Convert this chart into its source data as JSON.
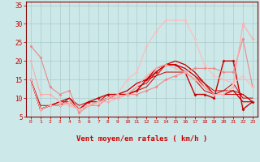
{
  "bg_color": "#cce8e8",
  "grid_color": "#aacccc",
  "xlabel": "Vent moyen/en rafales ( km/h )",
  "xlabel_color": "#cc0000",
  "tick_color": "#cc0000",
  "axis_color": "#880000",
  "xlim": [
    -0.5,
    23.5
  ],
  "ylim": [
    5,
    36
  ],
  "yticks": [
    5,
    10,
    15,
    20,
    25,
    30,
    35
  ],
  "xticks": [
    0,
    1,
    2,
    3,
    4,
    5,
    6,
    7,
    8,
    9,
    10,
    11,
    12,
    13,
    14,
    15,
    16,
    17,
    18,
    19,
    20,
    21,
    22,
    23
  ],
  "lines": [
    {
      "x": [
        0,
        1,
        2,
        3,
        4,
        5,
        6,
        7,
        8,
        9,
        10,
        11,
        12,
        13,
        14,
        15,
        16,
        17,
        18,
        19,
        20,
        21,
        22,
        23
      ],
      "y": [
        15,
        7,
        8,
        8,
        9,
        7,
        9,
        10,
        11,
        11,
        11,
        12,
        15,
        17,
        19,
        19,
        17,
        11,
        11,
        10,
        20,
        20,
        7,
        9
      ],
      "color": "#cc0000",
      "lw": 1.0,
      "marker": "D",
      "ms": 2.0
    },
    {
      "x": [
        0,
        1,
        2,
        3,
        4,
        5,
        6,
        7,
        8,
        9,
        10,
        11,
        12,
        13,
        14,
        15,
        16,
        17,
        18,
        19,
        20,
        21,
        22,
        23
      ],
      "y": [
        24,
        21,
        13,
        11,
        12,
        6,
        8,
        8,
        10,
        10,
        11,
        11,
        12,
        13,
        15,
        16,
        17,
        18,
        18,
        18,
        17,
        17,
        26,
        13
      ],
      "color": "#ee8888",
      "lw": 0.8,
      "marker": "D",
      "ms": 2.0
    },
    {
      "x": [
        0,
        1,
        2,
        3,
        4,
        5,
        6,
        7,
        8,
        9,
        10,
        11,
        12,
        13,
        14,
        15,
        16,
        17,
        18,
        19,
        20,
        21,
        22,
        23
      ],
      "y": [
        20,
        11,
        11,
        9,
        8,
        7,
        8,
        9,
        9,
        10,
        11,
        13,
        16,
        18,
        19,
        18,
        17,
        15,
        13,
        11,
        11,
        13,
        30,
        26
      ],
      "color": "#ffaaaa",
      "lw": 0.8,
      "marker": "D",
      "ms": 2.0
    },
    {
      "x": [
        0,
        1,
        2,
        3,
        4,
        5,
        9,
        10,
        11,
        12,
        13,
        14,
        15,
        16,
        17,
        18,
        19,
        20,
        21,
        22,
        23
      ],
      "y": [
        15,
        7,
        8,
        8,
        9,
        7,
        11,
        15,
        17,
        24,
        28,
        31,
        31,
        31,
        26,
        19,
        16,
        15,
        14,
        16,
        13
      ],
      "color": "#ffbbbb",
      "lw": 0.8,
      "marker": "D",
      "ms": 2.0
    },
    {
      "x": [
        0,
        1,
        2,
        3,
        4,
        5,
        6,
        7,
        8,
        9,
        10,
        11,
        12,
        13,
        14,
        15,
        16,
        17,
        18,
        19,
        20,
        21,
        22,
        23
      ],
      "y": [
        15,
        7,
        8,
        8,
        10,
        7,
        8,
        9,
        10,
        11,
        11,
        12,
        13,
        16,
        19,
        19,
        18,
        16,
        13,
        11,
        11,
        11,
        11,
        9
      ],
      "color": "#cc0000",
      "lw": 0.7,
      "marker": null,
      "ms": 0
    },
    {
      "x": [
        0,
        1,
        2,
        3,
        4,
        5,
        6,
        7,
        8,
        9,
        10,
        11,
        12,
        13,
        14,
        15,
        16,
        17,
        18,
        19,
        20,
        21,
        22,
        23
      ],
      "y": [
        15,
        7,
        8,
        9,
        10,
        8,
        9,
        9,
        10,
        11,
        12,
        14,
        15,
        18,
        19,
        20,
        19,
        17,
        14,
        12,
        12,
        12,
        11,
        9
      ],
      "color": "#cc0000",
      "lw": 0.7,
      "marker": null,
      "ms": 0
    },
    {
      "x": [
        0,
        1,
        2,
        3,
        4,
        5,
        6,
        7,
        8,
        9,
        10,
        11,
        12,
        13,
        14,
        15,
        16,
        17,
        18,
        19,
        20,
        21,
        22,
        23
      ],
      "y": [
        15,
        8,
        8,
        9,
        9,
        7,
        9,
        9,
        10,
        11,
        11,
        13,
        14,
        17,
        19,
        19,
        18,
        16,
        14,
        11,
        11,
        12,
        9,
        9
      ],
      "color": "#cc0000",
      "lw": 0.7,
      "marker": null,
      "ms": 0
    },
    {
      "x": [
        0,
        1,
        2,
        3,
        4,
        5,
        6,
        7,
        8,
        9,
        10,
        11,
        12,
        13,
        14,
        15,
        16,
        17,
        18,
        19,
        20,
        21,
        22,
        23
      ],
      "y": [
        15,
        7,
        8,
        8,
        9,
        7,
        8,
        9,
        10,
        11,
        11,
        12,
        15,
        18,
        19,
        20,
        19,
        17,
        14,
        11,
        11,
        12,
        9,
        9
      ],
      "color": "#cc0000",
      "lw": 0.7,
      "marker": null,
      "ms": 0
    },
    {
      "x": [
        0,
        1,
        2,
        3,
        4,
        5,
        6,
        7,
        8,
        9,
        10,
        11,
        12,
        13,
        14,
        15,
        16,
        17,
        18,
        19,
        20,
        21,
        22,
        23
      ],
      "y": [
        15,
        7,
        8,
        9,
        10,
        7,
        8,
        9,
        11,
        11,
        12,
        14,
        15,
        16,
        17,
        17,
        17,
        15,
        12,
        11,
        12,
        14,
        10,
        10
      ],
      "color": "#cc0000",
      "lw": 0.7,
      "marker": null,
      "ms": 0
    }
  ],
  "wind_arrows": [
    0,
    1,
    2,
    3,
    4,
    5,
    6,
    7,
    8,
    9,
    10,
    11,
    12,
    13,
    14,
    15,
    16,
    17,
    18,
    19,
    20,
    21,
    22,
    23
  ],
  "wind_arrow_color": "#cc0000",
  "xlabel_fontsize": 6.5,
  "ytick_fontsize": 5.5,
  "xtick_fontsize": 4.5
}
